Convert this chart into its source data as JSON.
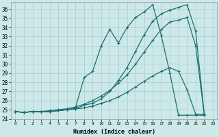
{
  "xlabel": "Humidex (Indice chaleur)",
  "bg_color": "#cce8e8",
  "grid_color": "#aacccc",
  "line_color": "#1a6e6e",
  "xlim": [
    -0.5,
    23.5
  ],
  "ylim": [
    24,
    36.8
  ],
  "xticks": [
    0,
    1,
    2,
    3,
    4,
    5,
    6,
    7,
    8,
    9,
    10,
    11,
    12,
    13,
    14,
    15,
    16,
    17,
    18,
    19,
    20,
    21,
    22,
    23
  ],
  "yticks": [
    24,
    25,
    26,
    27,
    28,
    29,
    30,
    31,
    32,
    33,
    34,
    35,
    36
  ],
  "line1_x": [
    0,
    1,
    2,
    3,
    4,
    5,
    6,
    7,
    8,
    9,
    10,
    11,
    12,
    13,
    14,
    15,
    16,
    17,
    18,
    19,
    20,
    21,
    22
  ],
  "line1_y": [
    24.8,
    24.7,
    24.8,
    24.8,
    24.8,
    24.9,
    25.0,
    25.1,
    25.2,
    25.4,
    25.7,
    26.0,
    26.4,
    26.9,
    27.5,
    28.1,
    28.7,
    29.2,
    29.6,
    29.2,
    27.2,
    24.5,
    24.5
  ],
  "line2_x": [
    0,
    1,
    2,
    3,
    4,
    5,
    6,
    7,
    8,
    9,
    10,
    11,
    12,
    13,
    14,
    15,
    16,
    17,
    18,
    19,
    20,
    21,
    22
  ],
  "line2_y": [
    24.8,
    24.7,
    24.8,
    24.8,
    24.9,
    25.0,
    25.1,
    25.3,
    25.6,
    26.0,
    26.5,
    27.1,
    27.9,
    28.8,
    30.0,
    31.3,
    32.6,
    33.8,
    34.6,
    34.8,
    35.1,
    32.0,
    24.5
  ],
  "line3_x": [
    0,
    1,
    2,
    3,
    4,
    5,
    6,
    7,
    8,
    9,
    10,
    11,
    12,
    13,
    14,
    15,
    16,
    17,
    18,
    19,
    20,
    21,
    22
  ],
  "line3_y": [
    24.8,
    24.7,
    24.8,
    24.8,
    24.8,
    24.9,
    25.0,
    25.1,
    25.5,
    25.7,
    26.2,
    27.0,
    28.2,
    29.6,
    31.4,
    33.2,
    34.7,
    35.5,
    35.9,
    36.2,
    36.5,
    33.6,
    24.5
  ],
  "line4_x": [
    0,
    1,
    2,
    3,
    4,
    5,
    6,
    7,
    8,
    9,
    10,
    11,
    12,
    13,
    14,
    15,
    16,
    17,
    18,
    19,
    20,
    21,
    22
  ],
  "line4_y": [
    24.8,
    24.7,
    24.8,
    24.8,
    24.8,
    24.9,
    25.0,
    25.2,
    28.5,
    29.2,
    32.0,
    33.8,
    32.3,
    34.0,
    35.1,
    35.7,
    36.5,
    33.1,
    29.0,
    24.4,
    24.4,
    24.4,
    24.4
  ]
}
